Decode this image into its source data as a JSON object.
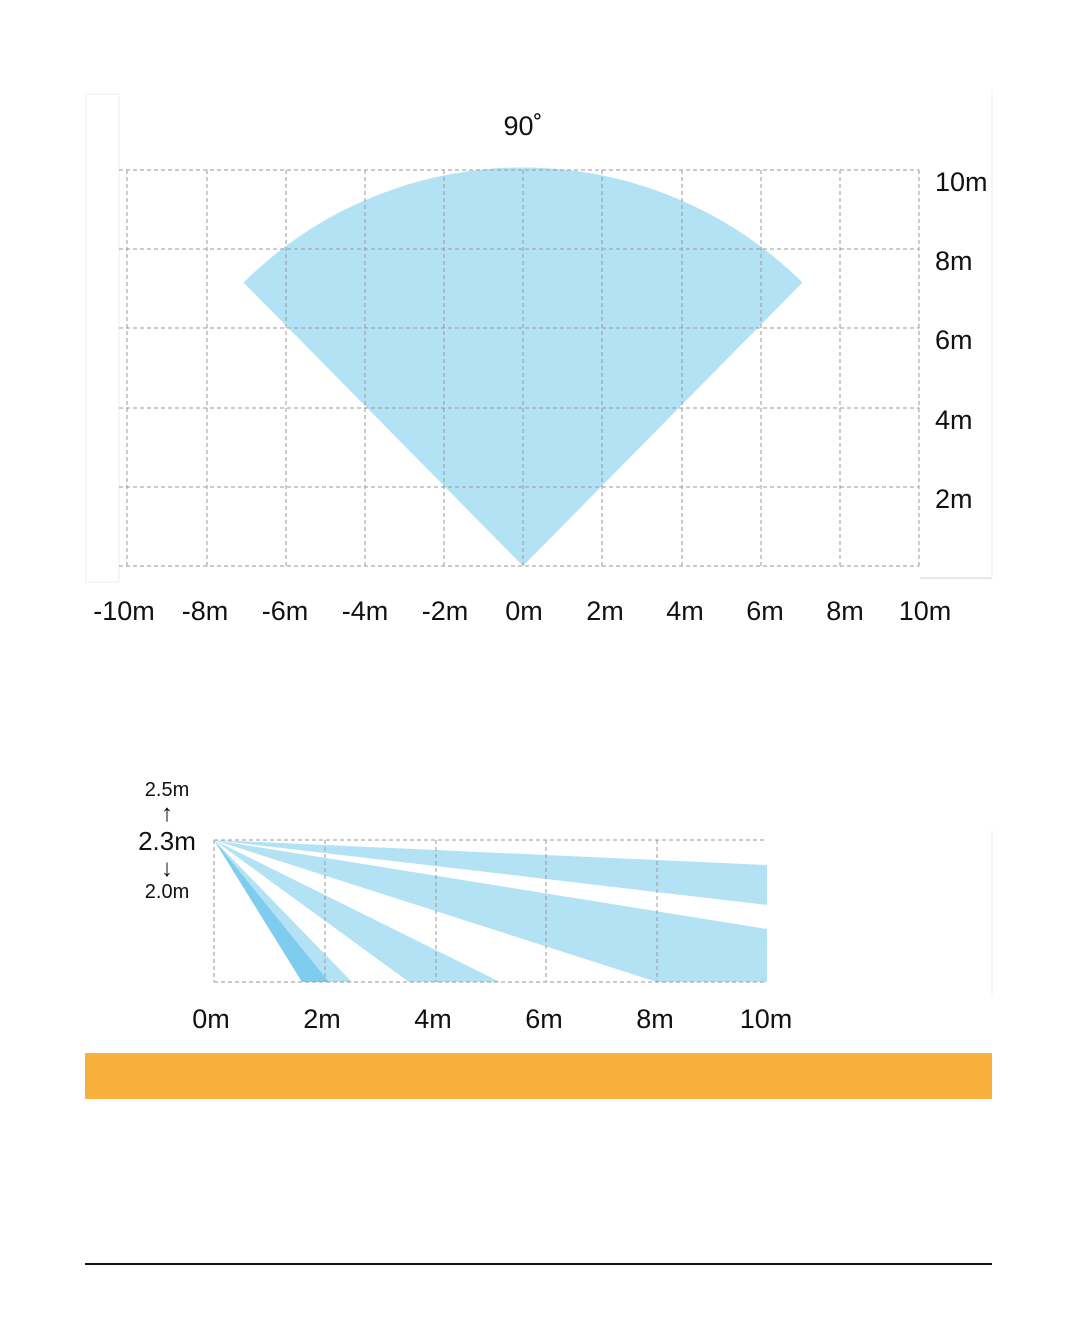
{
  "top_view": {
    "angle_label": "90˚",
    "y_labels": [
      "10m",
      "8m",
      "6m",
      "4m",
      "2m"
    ],
    "x_labels": [
      "-10m",
      "-8m",
      "-6m",
      "-4m",
      "-2m",
      "0m",
      "2m",
      "4m",
      "6m",
      "8m",
      "10m"
    ],
    "detection_angle_deg": 90,
    "detection_range_m": 10
  },
  "side_view": {
    "height_max": "2.5m",
    "height_nominal": "2.3m",
    "height_min": "2.0m",
    "arrow_up": "↑",
    "arrow_down": "↓",
    "x_labels": [
      "0m",
      "2m",
      "4m",
      "6m",
      "8m",
      "10m"
    ]
  },
  "colors": {
    "zone_fill": "#b3e2f5",
    "zone_dark": "#7fcdee",
    "grid": "#9a9a9a",
    "accent_band": "#f7b03b",
    "rule": "#111111"
  }
}
